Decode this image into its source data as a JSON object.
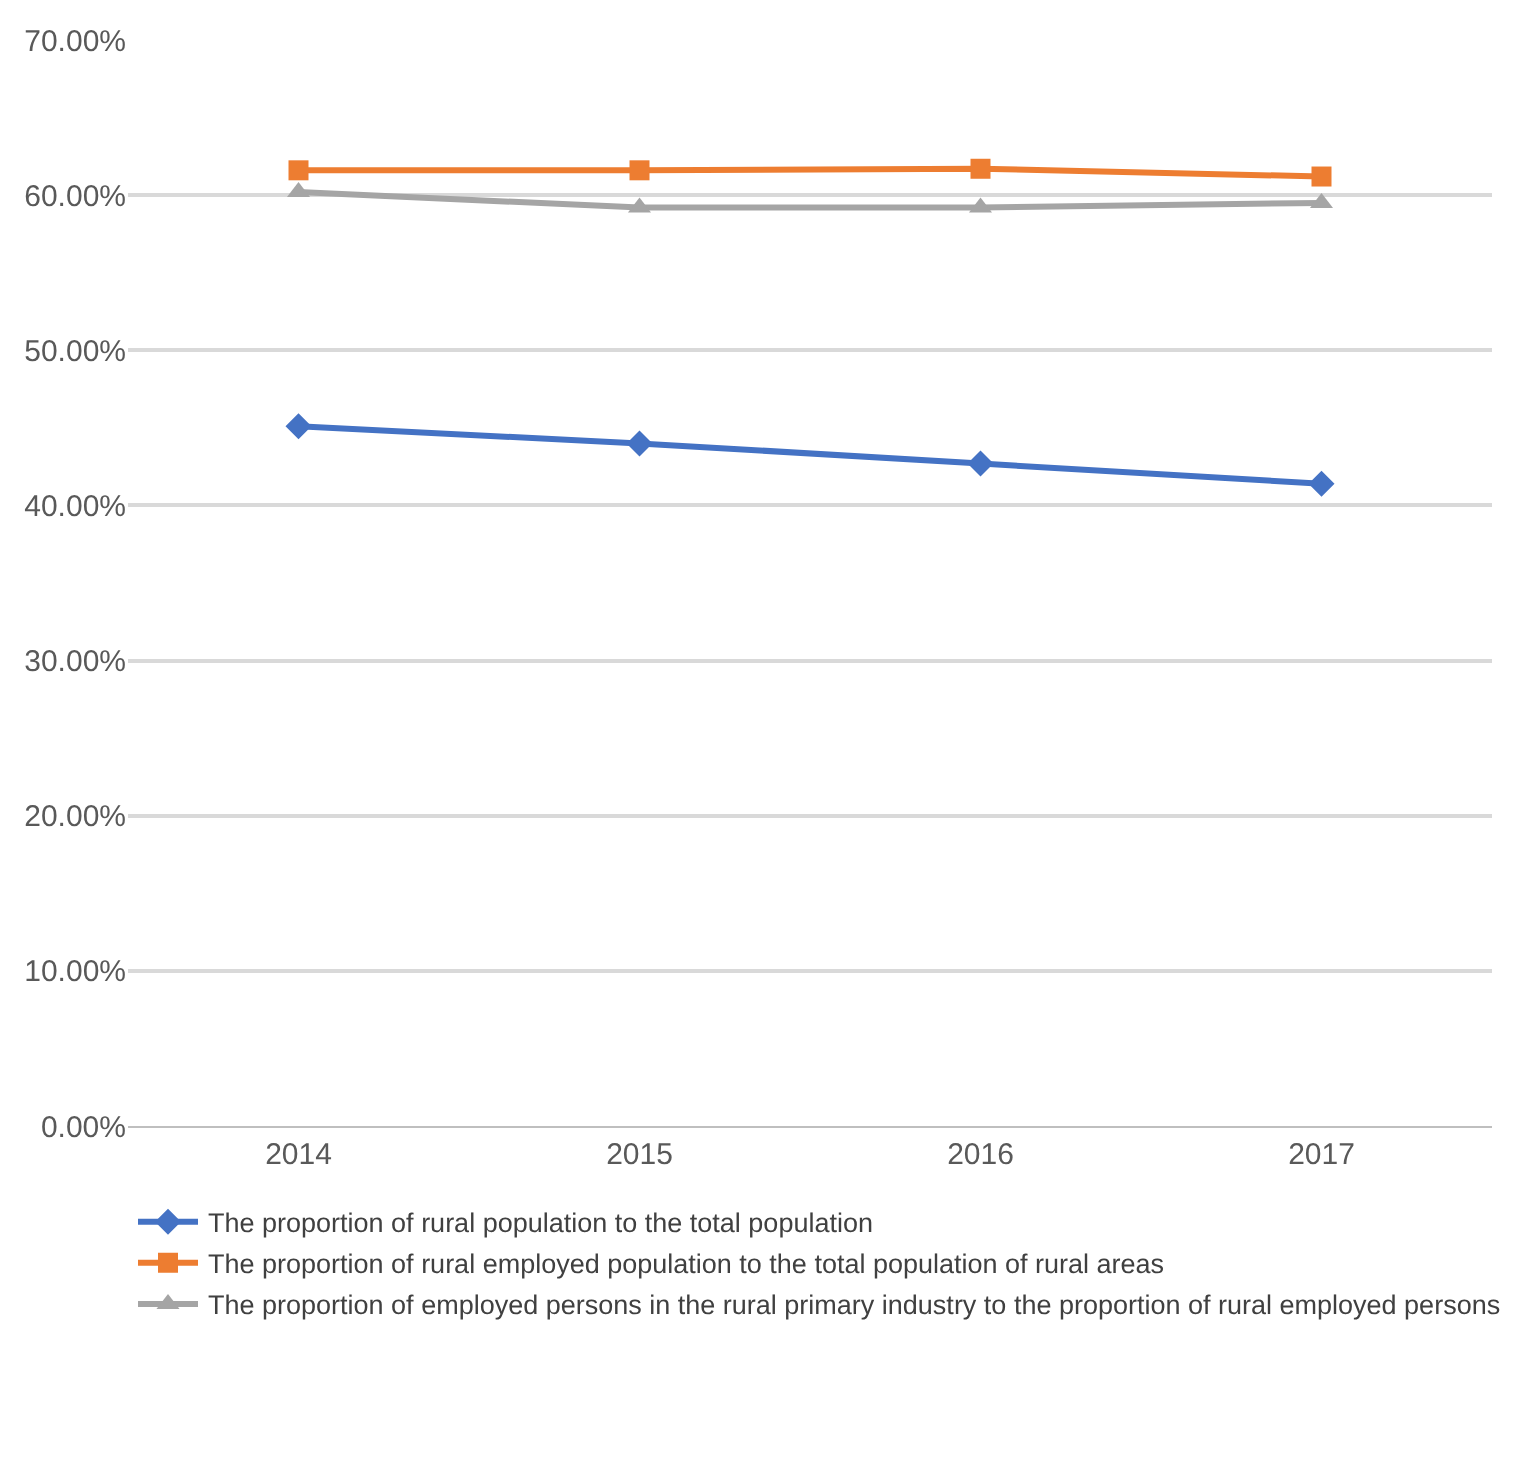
{
  "chart_data": {
    "type": "line",
    "categories": [
      "2014",
      "2015",
      "2016",
      "2017"
    ],
    "series": [
      {
        "name": "The proportion of rural population to the total population",
        "color": "#4472c4",
        "marker": "diamond",
        "values": [
          45.1,
          44.0,
          42.7,
          41.4
        ]
      },
      {
        "name": "The proportion of rural employed population to the total population of rural areas",
        "color": "#ed7d31",
        "marker": "square",
        "values": [
          61.6,
          61.6,
          61.7,
          61.2
        ]
      },
      {
        "name": "The proportion of employed persons in the rural primary industry to the proportion of rural employed persons",
        "color": "#a5a5a5",
        "marker": "triangle",
        "values": [
          60.2,
          59.2,
          59.2,
          59.5
        ]
      }
    ],
    "ylim": [
      0,
      70
    ],
    "yticks": [
      {
        "value": 0,
        "label": "0.00%"
      },
      {
        "value": 10,
        "label": "10.00%"
      },
      {
        "value": 20,
        "label": "20.00%"
      },
      {
        "value": 30,
        "label": "30.00%"
      },
      {
        "value": 40,
        "label": "40.00%"
      },
      {
        "value": 50,
        "label": "50.00%"
      },
      {
        "value": 60,
        "label": "60.00%"
      },
      {
        "value": 70,
        "label": "70.00%"
      }
    ],
    "grid": "y",
    "legend": "bottom",
    "line_style": "solid"
  }
}
